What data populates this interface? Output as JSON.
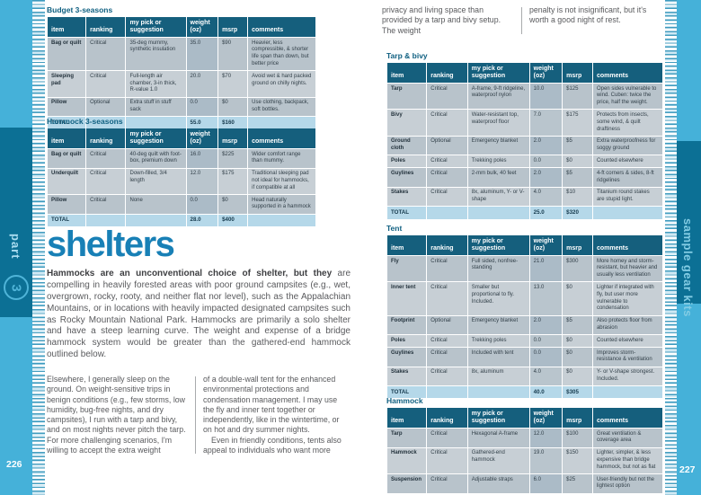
{
  "colors": {
    "accent_blue": "#1880b6",
    "header_teal": "#155f7d",
    "band_light": "#45b1d9",
    "band_dark": "#0c7095",
    "total_row": "#b5d8e9"
  },
  "sidebar": {
    "part_label": "part",
    "part_number": "3",
    "right_label": "sample gear kits",
    "left_page_number": "226",
    "right_page_number": "227"
  },
  "table_headers": [
    "item",
    "ranking",
    "my pick or suggestion",
    "weight (oz)",
    "msrp",
    "comments"
  ],
  "left_page": {
    "tables": {
      "budget": {
        "title": "Budget 3-seasons",
        "rows": [
          [
            "Bag or quilt",
            "Critical",
            "35-deg mummy, synthetic insulation",
            "35.0",
            "$90",
            "Heavier, less compressible, & shorter life span than down, but better price"
          ],
          [
            "Sleeping pad",
            "Critical",
            "Full-length air chamber, 3-in thick, R-value 1.0",
            "20.0",
            "$70",
            "Avoid wet & hard packed ground on chilly nights."
          ],
          [
            "Pillow",
            "Optional",
            "Extra stuff in stuff sack",
            "0.0",
            "$0",
            "Use clothing, backpack, soft bottles."
          ]
        ],
        "total": [
          "TOTAL",
          "",
          "",
          "55.0",
          "$160",
          ""
        ]
      },
      "hammock3": {
        "title": "Hammock 3-seasons",
        "rows": [
          [
            "Bag or quilt",
            "Critical",
            "40-deg quilt with foot-box, premium down",
            "16.0",
            "$225",
            "Wider comfort range than mummy."
          ],
          [
            "Underquilt",
            "Critical",
            "Down-filled, 3/4 length",
            "12.0",
            "$175",
            "Traditional sleeping pad not ideal for hammocks, if compatible at all"
          ],
          [
            "Pillow",
            "Critical",
            "None",
            "0.0",
            "$0",
            "Head naturally supported in a hammock"
          ]
        ],
        "total": [
          "TOTAL",
          "",
          "",
          "28.0",
          "$400",
          ""
        ]
      }
    },
    "article": {
      "heading": "shelters",
      "intro_bold": "Hammocks are an unconventional choice of shelter, but they ",
      "intro_rest": "are compelling in heavily forested areas with poor ground campsites (e.g., wet, overgrown, rocky, rooty, and neither flat nor level), such as the Appalachian Mountains, or in locations with heavily impacted designated campsites such as Rocky Mountain National Park. Hammocks are primarily a solo shelter and have a steep learning curve. The weight and expense of a bridge hammock system would be greater than the gathered-end hammock outlined below.",
      "col1": "Elsewhere, I generally sleep on the ground. On weight-sensitive trips in benign conditions (e.g., few storms, low humidity, bug-free nights, and dry campsites), I run with a tarp and bivy, and on most nights never pitch the tarp. For more challenging scenarios, I'm willing to accept the extra weight",
      "col2a": "of a double-wall tent for the enhanced environmental protections and condensation management. I may use the fly and inner tent together or independently, like in the wintertime, or on hot and dry summer nights.",
      "col2b": "Even in friendly conditions, tents also appeal to individuals who want more"
    }
  },
  "right_page": {
    "continuation": {
      "col1": "privacy and living space than provided by a tarp and bivy setup. The weight",
      "col2": "penalty is not insignificant, but it's worth a good night of rest."
    },
    "tables": {
      "tarp_bivy": {
        "title": "Tarp & bivy",
        "rows": [
          [
            "Tarp",
            "Critical",
            "A-frame, 9-ft ridgeline, waterproof nylon",
            "10.0",
            "$125",
            "Open sides vulnerable to wind. Cuben: twice the price, half the weight."
          ],
          [
            "Bivy",
            "Critical",
            "Water-resistant top, waterproof floor",
            "7.0",
            "$175",
            "Protects from insects, some wind, & quilt draftiness"
          ],
          [
            "Ground cloth",
            "Optional",
            "Emergency blanket",
            "2.0",
            "$5",
            "Extra waterproofness for soggy ground"
          ],
          [
            "Poles",
            "Critical",
            "Trekking poles",
            "0.0",
            "$0",
            "Counted elsewhere"
          ],
          [
            "Guylines",
            "Critical",
            "2-mm bulk, 40 feet",
            "2.0",
            "$5",
            "4-ft corners & sides, 8-ft ridgelines"
          ],
          [
            "Stakes",
            "Critical",
            "8x, aluminum, Y- or V-shape",
            "4.0",
            "$10",
            "Titanium round stakes are stupid light."
          ]
        ],
        "total": [
          "TOTAL",
          "",
          "",
          "25.0",
          "$320",
          ""
        ]
      },
      "tent": {
        "title": "Tent",
        "rows": [
          [
            "Fly",
            "Critical",
            "Full sided, nonfree-standing",
            "21.0",
            "$300",
            "More homey and storm-resistant, but heavier and usually less ventilation"
          ],
          [
            "Inner tent",
            "Critical",
            "Smaller but proportional to fly. Included.",
            "13.0",
            "$0",
            "Lighter if integrated with fly, but user more vulnerable to condensation"
          ],
          [
            "Footprint",
            "Optional",
            "Emergency blanket",
            "2.0",
            "$5",
            "Also protects floor from abrasion"
          ],
          [
            "Poles",
            "Critical",
            "Trekking poles",
            "0.0",
            "$0",
            "Counted elsewhere"
          ],
          [
            "Guylines",
            "Critical",
            "Included with tent",
            "0.0",
            "$0",
            "Improves storm-resistance & ventilation"
          ],
          [
            "Stakes",
            "Critical",
            "8x, aluminum",
            "4.0",
            "$0",
            "Y- or V-shape strongest. Included."
          ]
        ],
        "total": [
          "TOTAL",
          "",
          "",
          "40.0",
          "$305",
          ""
        ]
      },
      "hammock": {
        "title": "Hammock",
        "rows": [
          [
            "Tarp",
            "Critical",
            "Hexagonal A-frame",
            "12.0",
            "$100",
            "Great ventilation & coverage area"
          ],
          [
            "Hammock",
            "Critical",
            "Gathered-end hammock",
            "19.0",
            "$150",
            "Lighter, simpler, & less expensive than bridge hammock, but not as flat"
          ],
          [
            "Suspension",
            "Critical",
            "Adjustable straps",
            "6.0",
            "$25",
            "User-friendly but not the lightest option"
          ]
        ]
      }
    }
  }
}
